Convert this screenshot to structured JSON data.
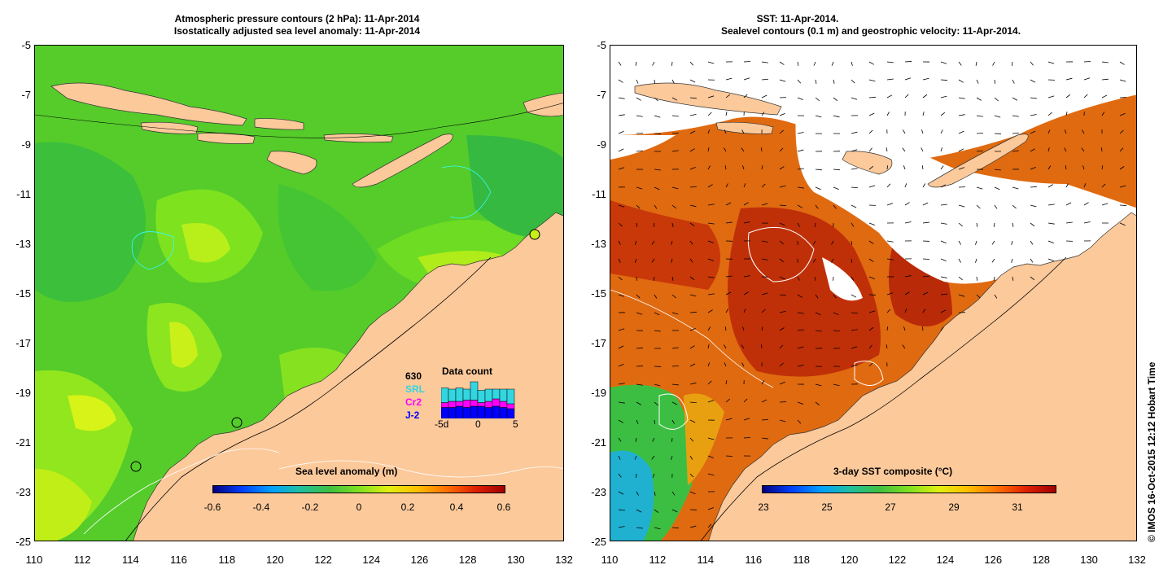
{
  "left_panel": {
    "title_line1": "Atmospheric pressure contours (2 hPa): 11-Apr-2014",
    "title_line2": "Isostatically adjusted sea level anomaly: 11-Apr-2014",
    "colorbar_label": "Sea level anomaly (m)",
    "colorbar_ticks": [
      "-0.6",
      "-0.4",
      "-0.2",
      "0",
      "0.2",
      "0.4",
      "0.6"
    ],
    "inset": {
      "title": "Data count",
      "total": "630",
      "missions": [
        "SRL",
        "Cr2",
        "J-2"
      ],
      "mission_colors": [
        "#33d6e0",
        "#ff00ff",
        "#0000ff"
      ],
      "x_ticks": [
        "-5d",
        "0",
        "5"
      ],
      "bars": [
        {
          "j2": 9,
          "cr2": 4,
          "srl": 12
        },
        {
          "j2": 9,
          "cr2": 5,
          "srl": 10
        },
        {
          "j2": 10,
          "cr2": 4,
          "srl": 11
        },
        {
          "j2": 9,
          "cr2": 6,
          "srl": 9
        },
        {
          "j2": 10,
          "cr2": 5,
          "srl": 15
        },
        {
          "j2": 10,
          "cr2": 3,
          "srl": 10
        },
        {
          "j2": 9,
          "cr2": 5,
          "srl": 10
        },
        {
          "j2": 10,
          "cr2": 6,
          "srl": 8
        },
        {
          "j2": 9,
          "cr2": 5,
          "srl": 10
        },
        {
          "j2": 8,
          "cr2": 4,
          "srl": 12
        }
      ]
    }
  },
  "right_panel": {
    "title_line1": "SST: 11-Apr-2014.",
    "title_line2": "Sealevel contours (0.1 m) and geostrophic velocity: 11-Apr-2014.",
    "colorbar_label": "3-day SST composite (°C)",
    "colorbar_ticks": [
      "23",
      "25",
      "27",
      "29",
      "31"
    ]
  },
  "axes": {
    "lat_ticks": [
      "-5",
      "-7",
      "-9",
      "-11",
      "-13",
      "-15",
      "-17",
      "-19",
      "-21",
      "-23",
      "-25"
    ],
    "lon_ticks": [
      "110",
      "112",
      "114",
      "116",
      "118",
      "120",
      "122",
      "124",
      "126",
      "128",
      "130",
      "132"
    ]
  },
  "credit": "© IMOS 16-Oct-2015 12:12 Hobart Time"
}
